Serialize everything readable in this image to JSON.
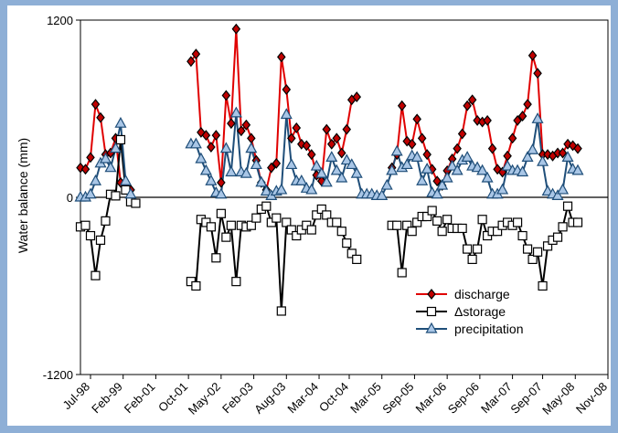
{
  "chart_data": {
    "type": "line",
    "y_label": "Water balance (mm)",
    "x": [
      0,
      1,
      2,
      3,
      4,
      5,
      6,
      7,
      8,
      9,
      10,
      11,
      12,
      13,
      14,
      15,
      16,
      17,
      18,
      19,
      20,
      21,
      22,
      23,
      24,
      25,
      26,
      27,
      28,
      29,
      30,
      31,
      32,
      33,
      34,
      35,
      36,
      37,
      38,
      39,
      40,
      41,
      42,
      43,
      44,
      45,
      46,
      47,
      48,
      49,
      50,
      51,
      52,
      53,
      54,
      55,
      56,
      57,
      58,
      59,
      60,
      61,
      62,
      63,
      64,
      65,
      66,
      67,
      68,
      69,
      70,
      71,
      72,
      73,
      74,
      75,
      76,
      77,
      78,
      79,
      80,
      81,
      82,
      83,
      84,
      85,
      86,
      87,
      88,
      89,
      90,
      91,
      92,
      93,
      94,
      95,
      96,
      97,
      98,
      99,
      100,
      101
    ],
    "xlim": [
      0,
      105
    ],
    "xticks": [
      {
        "value": 2,
        "label": "Jul-98"
      },
      {
        "value": 8.5,
        "label": "Feb-99"
      },
      {
        "value": 15,
        "label": "Feb-01"
      },
      {
        "value": 21.5,
        "label": "Oct-01"
      },
      {
        "value": 28,
        "label": "May-02"
      },
      {
        "value": 34.5,
        "label": "Feb-03"
      },
      {
        "value": 41,
        "label": "Aug-03"
      },
      {
        "value": 47.5,
        "label": "Mar-04"
      },
      {
        "value": 53.5,
        "label": "Oct-04"
      },
      {
        "value": 60,
        "label": "Mar-05"
      },
      {
        "value": 66.5,
        "label": "Sep-05"
      },
      {
        "value": 73,
        "label": "Mar-06"
      },
      {
        "value": 79.5,
        "label": "Sep-06"
      },
      {
        "value": 86,
        "label": "Mar-07"
      },
      {
        "value": 92,
        "label": "Sep-07"
      },
      {
        "value": 98.5,
        "label": "May-08"
      },
      {
        "value": 105,
        "label": "Nov-08"
      }
    ],
    "ylim": [
      -1200,
      1200
    ],
    "yticks": [
      -1200,
      0,
      1200
    ],
    "zero_line": true,
    "legend": "lower right",
    "series": [
      {
        "name": "discharge",
        "color": "#e00000",
        "marker": "diamond",
        "marker_fill": "#c00000",
        "values": [
          200,
          190,
          270,
          630,
          540,
          290,
          300,
          400,
          100,
          90,
          50,
          null,
          null,
          null,
          null,
          null,
          null,
          null,
          null,
          null,
          null,
          null,
          920,
          970,
          440,
          420,
          340,
          420,
          100,
          690,
          500,
          1140,
          450,
          490,
          400,
          250,
          100,
          50,
          200,
          230,
          950,
          730,
          400,
          470,
          360,
          350,
          290,
          150,
          110,
          460,
          360,
          400,
          300,
          460,
          660,
          680,
          null,
          null,
          null,
          null,
          null,
          null,
          200,
          290,
          620,
          380,
          360,
          530,
          400,
          290,
          190,
          110,
          80,
          180,
          260,
          330,
          430,
          620,
          660,
          520,
          510,
          520,
          330,
          190,
          170,
          280,
          400,
          520,
          550,
          630,
          960,
          840,
          290,
          290,
          280,
          300,
          300,
          360,
          350,
          330,
          null,
          null
        ]
      },
      {
        "name": "Δstorage",
        "color": "#000000",
        "marker": "square",
        "marker_fill": "#ffffff",
        "values": [
          -200,
          -190,
          -260,
          -530,
          -290,
          -160,
          20,
          10,
          390,
          50,
          -30,
          -40,
          null,
          null,
          null,
          null,
          null,
          null,
          null,
          null,
          null,
          null,
          -570,
          -600,
          -150,
          -170,
          -200,
          -410,
          -110,
          -270,
          -190,
          -570,
          -190,
          -200,
          -190,
          -140,
          -80,
          -60,
          -170,
          -140,
          -770,
          -170,
          -220,
          -260,
          -220,
          -190,
          -220,
          -120,
          -80,
          -120,
          -170,
          -170,
          -230,
          -310,
          -380,
          -420,
          null,
          null,
          null,
          null,
          null,
          null,
          -190,
          -190,
          -510,
          -190,
          -230,
          -170,
          -130,
          -130,
          -90,
          -160,
          -230,
          -150,
          -210,
          -210,
          -210,
          -350,
          -420,
          -350,
          -150,
          -260,
          -230,
          -230,
          -190,
          -170,
          -190,
          -170,
          -260,
          -350,
          -420,
          -370,
          -600,
          -330,
          -290,
          -270,
          -200,
          -60,
          -170,
          -170,
          null,
          null
        ]
      },
      {
        "name": "precipitation",
        "color": "#1f4e79",
        "marker": "triangle",
        "marker_fill": "#a9c6e6",
        "values": [
          0,
          0,
          20,
          110,
          230,
          260,
          200,
          330,
          500,
          110,
          20,
          null,
          null,
          null,
          null,
          null,
          null,
          null,
          null,
          null,
          null,
          null,
          360,
          360,
          260,
          180,
          110,
          30,
          20,
          330,
          170,
          570,
          170,
          160,
          330,
          220,
          100,
          40,
          10,
          40,
          50,
          560,
          220,
          110,
          110,
          60,
          50,
          210,
          160,
          100,
          270,
          180,
          130,
          250,
          220,
          160,
          20,
          20,
          20,
          10,
          10,
          80,
          180,
          310,
          200,
          220,
          280,
          270,
          110,
          190,
          30,
          20,
          80,
          130,
          210,
          180,
          250,
          270,
          210,
          200,
          180,
          130,
          20,
          20,
          50,
          210,
          180,
          180,
          170,
          270,
          320,
          530,
          240,
          40,
          20,
          10,
          50,
          270,
          190,
          180,
          null,
          null
        ]
      }
    ]
  }
}
